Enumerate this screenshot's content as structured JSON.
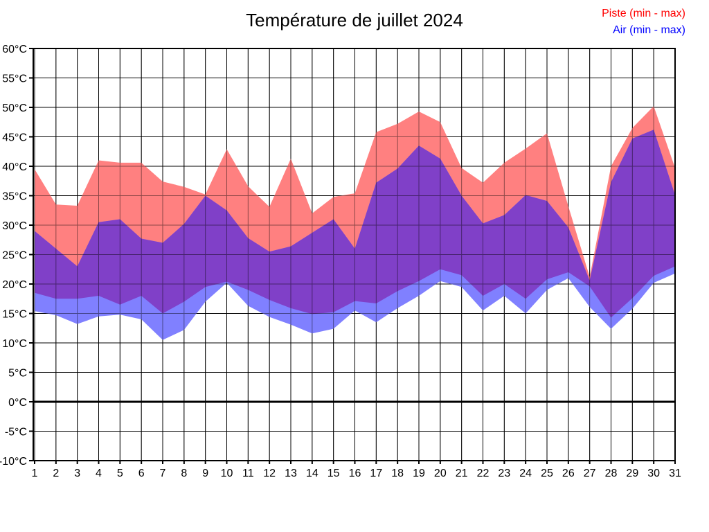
{
  "title": "Température de juillet 2024",
  "legend": {
    "piste_label": "Piste (min - max)",
    "air_label": "Air (min - max)",
    "piste_color": "#ff0000",
    "air_color": "#0000ff"
  },
  "chart_data": {
    "type": "area",
    "title": "Température de juillet 2024",
    "xlabel": "",
    "ylabel": "",
    "x": [
      1,
      2,
      3,
      4,
      5,
      6,
      7,
      8,
      9,
      10,
      11,
      12,
      13,
      14,
      15,
      16,
      17,
      18,
      19,
      20,
      21,
      22,
      23,
      24,
      25,
      26,
      27,
      28,
      29,
      30,
      31
    ],
    "x_tick_labels": [
      "1",
      "2",
      "3",
      "4",
      "5",
      "6",
      "7",
      "8",
      "9",
      "10",
      "11",
      "12",
      "13",
      "14",
      "15",
      "16",
      "17",
      "18",
      "19",
      "20",
      "21",
      "22",
      "23",
      "24",
      "25",
      "26",
      "27",
      "28",
      "29",
      "30",
      "31"
    ],
    "series": [
      {
        "name": "Piste min",
        "values": [
          18.5,
          17.5,
          17.5,
          18.0,
          16.5,
          18.0,
          15.0,
          17.0,
          19.5,
          20.4,
          19.0,
          17.3,
          15.9,
          14.9,
          15.2,
          17.1,
          16.7,
          18.8,
          20.5,
          22.5,
          21.5,
          18.0,
          20.0,
          17.5,
          20.8,
          22.0,
          19.6,
          14.3,
          17.6,
          21.4,
          23.0
        ]
      },
      {
        "name": "Piste max",
        "values": [
          39.5,
          33.5,
          33.3,
          41.0,
          40.6,
          40.6,
          37.4,
          36.5,
          35.2,
          42.9,
          36.6,
          33.1,
          41.3,
          32.0,
          34.8,
          35.4,
          45.8,
          47.2,
          49.3,
          47.5,
          39.7,
          37.2,
          40.6,
          43.0,
          45.6,
          33.2,
          21.2,
          40.0,
          46.5,
          50.2,
          39.7
        ]
      },
      {
        "name": "Air min",
        "values": [
          15.4,
          14.7,
          13.2,
          14.5,
          14.8,
          14.0,
          10.5,
          12.2,
          17.0,
          20.2,
          16.3,
          14.4,
          13.1,
          11.6,
          12.4,
          15.5,
          13.5,
          15.9,
          18.0,
          20.5,
          19.5,
          15.5,
          18.0,
          15.0,
          19.0,
          21.0,
          16.1,
          12.4,
          15.8,
          20.2,
          21.8
        ]
      },
      {
        "name": "Air max",
        "values": [
          29.0,
          26.0,
          23.0,
          30.5,
          31.0,
          27.7,
          27.0,
          30.2,
          35.0,
          32.5,
          27.8,
          25.5,
          26.4,
          28.7,
          31.0,
          26.0,
          37.2,
          39.6,
          43.5,
          41.3,
          35.0,
          30.3,
          31.7,
          35.1,
          34.1,
          29.6,
          20.6,
          37.3,
          44.7,
          46.2,
          35.1
        ]
      }
    ],
    "ylim": [
      -10,
      60
    ],
    "y_ticks": [
      60,
      55,
      50,
      45,
      40,
      35,
      30,
      25,
      20,
      15,
      10,
      5,
      0,
      -5,
      -10
    ],
    "y_tick_labels": [
      "60°C",
      "55°C",
      "50°C",
      "45°C",
      "40°C",
      "35°C",
      "30°C",
      "25°C",
      "20°C",
      "15°C",
      "10°C",
      "5°C",
      "0°C",
      "-5°C",
      "-10°C"
    ],
    "grid": true,
    "legend_position": "top-right",
    "zero_line": true,
    "colors": {
      "piste_band": "#ff8080",
      "air_band": "#8080ff",
      "overlap_band": "#8040c8",
      "grid": "#000000",
      "axis": "#000000",
      "background": "#ffffff"
    }
  }
}
